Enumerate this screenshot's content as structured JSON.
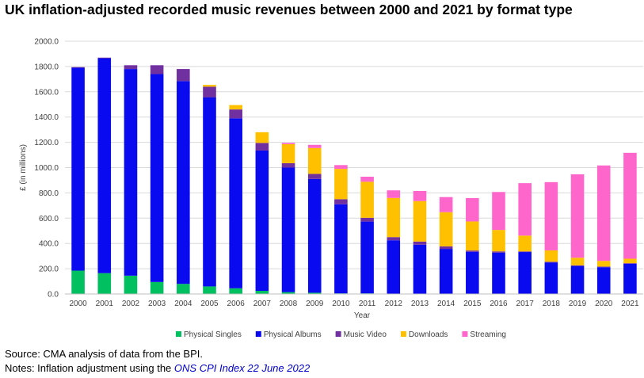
{
  "title": "UK inflation-adjusted recorded music revenues between 2000 and 2021 by format type",
  "chart_data": {
    "type": "bar",
    "stacked": true,
    "categories": [
      "2000",
      "2001",
      "2002",
      "2003",
      "2004",
      "2005",
      "2006",
      "2007",
      "2008",
      "2009",
      "2010",
      "2011",
      "2012",
      "2013",
      "2014",
      "2015",
      "2016",
      "2017",
      "2018",
      "2019",
      "2020",
      "2021"
    ],
    "series": [
      {
        "name": "Physical Singles",
        "color": "#00c060",
        "values": [
          185,
          165,
          145,
          95,
          80,
          60,
          45,
          25,
          15,
          10,
          5,
          5,
          3,
          2,
          2,
          2,
          2,
          2,
          2,
          2,
          2,
          2
        ]
      },
      {
        "name": "Physical Albums",
        "color": "#0a0af0",
        "values": [
          1605,
          1700,
          1635,
          1645,
          1605,
          1495,
          1345,
          1110,
          985,
          900,
          705,
          568,
          422,
          388,
          355,
          332,
          325,
          330,
          248,
          220,
          210,
          237
        ]
      },
      {
        "name": "Music Video",
        "color": "#7030a0",
        "values": [
          5,
          5,
          30,
          70,
          95,
          85,
          70,
          60,
          35,
          40,
          40,
          30,
          25,
          25,
          20,
          10,
          10,
          5,
          5,
          5,
          5,
          5
        ]
      },
      {
        "name": "Downloads",
        "color": "#ffc000",
        "values": [
          0,
          0,
          0,
          0,
          0,
          15,
          35,
          85,
          150,
          205,
          240,
          285,
          310,
          320,
          270,
          230,
          170,
          125,
          90,
          60,
          45,
          35
        ]
      },
      {
        "name": "Streaming",
        "color": "#ff66cc",
        "values": [
          0,
          0,
          0,
          0,
          0,
          0,
          0,
          0,
          10,
          25,
          30,
          40,
          60,
          80,
          120,
          185,
          300,
          415,
          540,
          660,
          755,
          838
        ]
      }
    ],
    "yticks": [
      "0.0",
      "200.0",
      "400.0",
      "600.0",
      "800.0",
      "1000.0",
      "1200.0",
      "1400.0",
      "1600.0",
      "1800.0",
      "2000.0"
    ],
    "ylim": [
      0,
      2000
    ],
    "xlabel": "Year",
    "ylabel": "£ (in millions)",
    "grid": true,
    "legend": "bottom"
  },
  "notes": {
    "source": "Source: CMA analysis of data from the BPI.",
    "adjust_prefix": "Notes: Inflation adjustment using the ",
    "adjust_link": "ONS CPI Index 22 June 2022"
  }
}
